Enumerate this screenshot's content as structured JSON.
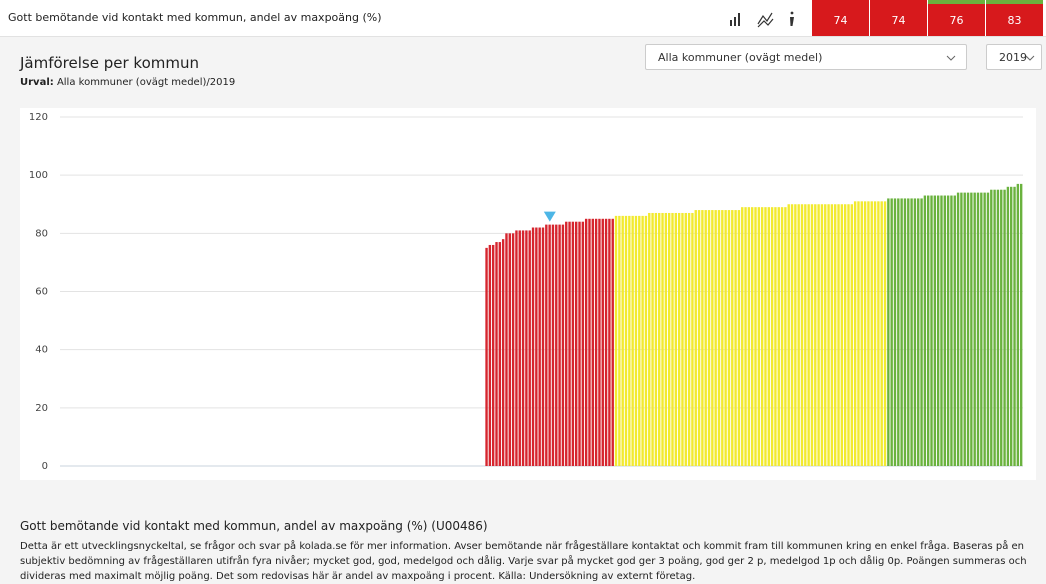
{
  "header": {
    "title": "Gott bemötande vid kontakt med kommun, andel av maxpoäng (%)"
  },
  "kpi_boxes": [
    {
      "value": 74,
      "color": "#d7191c",
      "stripe": "#d7191c"
    },
    {
      "value": 74,
      "color": "#d7191c",
      "stripe": "#d7191c"
    },
    {
      "value": 76,
      "color": "#d7191c",
      "stripe": "#6ab23e"
    },
    {
      "value": 83,
      "color": "#d7191c",
      "stripe": "#6ab23e"
    }
  ],
  "panel": {
    "title": "Jämförelse per kommun",
    "selection_label": "Urval:",
    "selection": "Alla kommuner (ovägt medel)/2019",
    "dropdowns": [
      "Alla kommuner (ovägt medel)",
      "2019"
    ]
  },
  "chart_data": {
    "type": "bar",
    "ylim": [
      0,
      120
    ],
    "yticks": [
      0,
      20,
      40,
      60,
      80,
      100,
      120
    ],
    "grid": true,
    "palette": {
      "r": "#d6252e",
      "y": "#f2ea2f",
      "g": "#6ab23e"
    },
    "marker": {
      "index": 147,
      "color": "#4db6e6"
    },
    "values": [
      null,
      null,
      null,
      null,
      null,
      null,
      null,
      null,
      null,
      null,
      null,
      null,
      null,
      null,
      null,
      null,
      null,
      null,
      null,
      null,
      null,
      null,
      null,
      null,
      null,
      null,
      null,
      null,
      null,
      null,
      null,
      null,
      null,
      null,
      null,
      null,
      null,
      null,
      null,
      null,
      null,
      null,
      null,
      null,
      null,
      null,
      null,
      null,
      null,
      null,
      null,
      null,
      null,
      null,
      null,
      null,
      null,
      null,
      null,
      null,
      null,
      null,
      null,
      null,
      null,
      null,
      null,
      null,
      null,
      null,
      null,
      null,
      null,
      null,
      null,
      null,
      null,
      null,
      null,
      null,
      null,
      null,
      null,
      null,
      null,
      null,
      null,
      null,
      null,
      null,
      null,
      null,
      null,
      null,
      null,
      null,
      null,
      null,
      null,
      null,
      null,
      null,
      null,
      null,
      null,
      null,
      null,
      null,
      null,
      null,
      null,
      null,
      null,
      null,
      null,
      null,
      null,
      null,
      null,
      null,
      null,
      null,
      null,
      null,
      null,
      null,
      null,
      null,
      75,
      76,
      76,
      77,
      77,
      78,
      80,
      80,
      80,
      81,
      81,
      81,
      81,
      81,
      82,
      82,
      82,
      82,
      83,
      83,
      83,
      83,
      83,
      83,
      84,
      84,
      84,
      84,
      84,
      84,
      85,
      85,
      85,
      85,
      85,
      85,
      85,
      85,
      85,
      86,
      86,
      86,
      86,
      86,
      86,
      86,
      86,
      86,
      86,
      87,
      87,
      87,
      87,
      87,
      87,
      87,
      87,
      87,
      87,
      87,
      87,
      87,
      87,
      88,
      88,
      88,
      88,
      88,
      88,
      88,
      88,
      88,
      88,
      88,
      88,
      88,
      88,
      89,
      89,
      89,
      89,
      89,
      89,
      89,
      89,
      89,
      89,
      89,
      89,
      89,
      89,
      90,
      90,
      90,
      90,
      90,
      90,
      90,
      90,
      90,
      90,
      90,
      90,
      90,
      90,
      90,
      90,
      90,
      90,
      90,
      90,
      91,
      91,
      91,
      91,
      91,
      91,
      91,
      91,
      91,
      91,
      92,
      92,
      92,
      92,
      92,
      92,
      92,
      92,
      92,
      92,
      92,
      93,
      93,
      93,
      93,
      93,
      93,
      93,
      93,
      93,
      93,
      94,
      94,
      94,
      94,
      94,
      94,
      94,
      94,
      94,
      94,
      95,
      95,
      95,
      95,
      95,
      96,
      96,
      96,
      97,
      97
    ],
    "colors": [
      null,
      null,
      null,
      null,
      null,
      null,
      null,
      null,
      null,
      null,
      null,
      null,
      null,
      null,
      null,
      null,
      null,
      null,
      null,
      null,
      null,
      null,
      null,
      null,
      null,
      null,
      null,
      null,
      null,
      null,
      null,
      null,
      null,
      null,
      null,
      null,
      null,
      null,
      null,
      null,
      null,
      null,
      null,
      null,
      null,
      null,
      null,
      null,
      null,
      null,
      null,
      null,
      null,
      null,
      null,
      null,
      null,
      null,
      null,
      null,
      null,
      null,
      null,
      null,
      null,
      null,
      null,
      null,
      null,
      null,
      null,
      null,
      null,
      null,
      null,
      null,
      null,
      null,
      null,
      null,
      null,
      null,
      null,
      null,
      null,
      null,
      null,
      null,
      null,
      null,
      null,
      null,
      null,
      null,
      null,
      null,
      null,
      null,
      null,
      null,
      null,
      null,
      null,
      null,
      null,
      null,
      null,
      null,
      null,
      null,
      null,
      null,
      null,
      null,
      null,
      null,
      null,
      null,
      null,
      null,
      null,
      null,
      null,
      null,
      null,
      null,
      null,
      null,
      "r",
      "r",
      "r",
      "r",
      "r",
      "r",
      "r",
      "r",
      "r",
      "r",
      "r",
      "r",
      "r",
      "r",
      "r",
      "r",
      "r",
      "r",
      "r",
      "r",
      "r",
      "r",
      "r",
      "r",
      "r",
      "r",
      "r",
      "r",
      "r",
      "r",
      "r",
      "r",
      "r",
      "r",
      "r",
      "r",
      "r",
      "r",
      "r",
      "y",
      "y",
      "y",
      "y",
      "y",
      "y",
      "y",
      "y",
      "y",
      "y",
      "y",
      "y",
      "y",
      "y",
      "y",
      "y",
      "y",
      "y",
      "y",
      "y",
      "y",
      "y",
      "y",
      "y",
      "y",
      "y",
      "y",
      "y",
      "y",
      "y",
      "y",
      "y",
      "y",
      "y",
      "y",
      "y",
      "y",
      "y",
      "y",
      "y",
      "y",
      "y",
      "y",
      "y",
      "y",
      "y",
      "y",
      "y",
      "y",
      "y",
      "y",
      "y",
      "y",
      "y",
      "y",
      "y",
      "y",
      "y",
      "y",
      "y",
      "y",
      "y",
      "y",
      "y",
      "y",
      "y",
      "y",
      "y",
      "y",
      "y",
      "y",
      "y",
      "y",
      "y",
      "y",
      "y",
      "y",
      "y",
      "y",
      "y",
      "y",
      "y",
      "g",
      "g",
      "g",
      "g",
      "g",
      "g",
      "g",
      "g",
      "g",
      "g",
      "g",
      "g",
      "g",
      "g",
      "g",
      "g",
      "g",
      "g",
      "g",
      "g",
      "g",
      "g",
      "g",
      "g",
      "g",
      "g",
      "g",
      "g",
      "g",
      "g",
      "g",
      "g",
      "g",
      "g",
      "g",
      "g",
      "g",
      "g",
      "g",
      "g",
      "g"
    ]
  },
  "description": {
    "title": "Gott bemötande vid kontakt med kommun, andel av maxpoäng (%) (U00486)",
    "text": "Detta är ett utvecklingsnyckeltal, se frågor och svar på kolada.se för mer information. Avser bemötande när frågeställare kontaktat och kommit fram till kommunen kring en enkel fråga. Baseras på en subjektiv bedömning av frågeställaren utifrån fyra nivåer; mycket god, god, medelgod och dålig. Varje svar på mycket god ger 3 poäng, god ger 2 p, medelgod 1p och dålig 0p. Poängen summeras och divideras med maximalt möjlig poäng. Det som redovisas här är andel av maxpoäng i procent. Källa: Undersökning av externt företag."
  }
}
